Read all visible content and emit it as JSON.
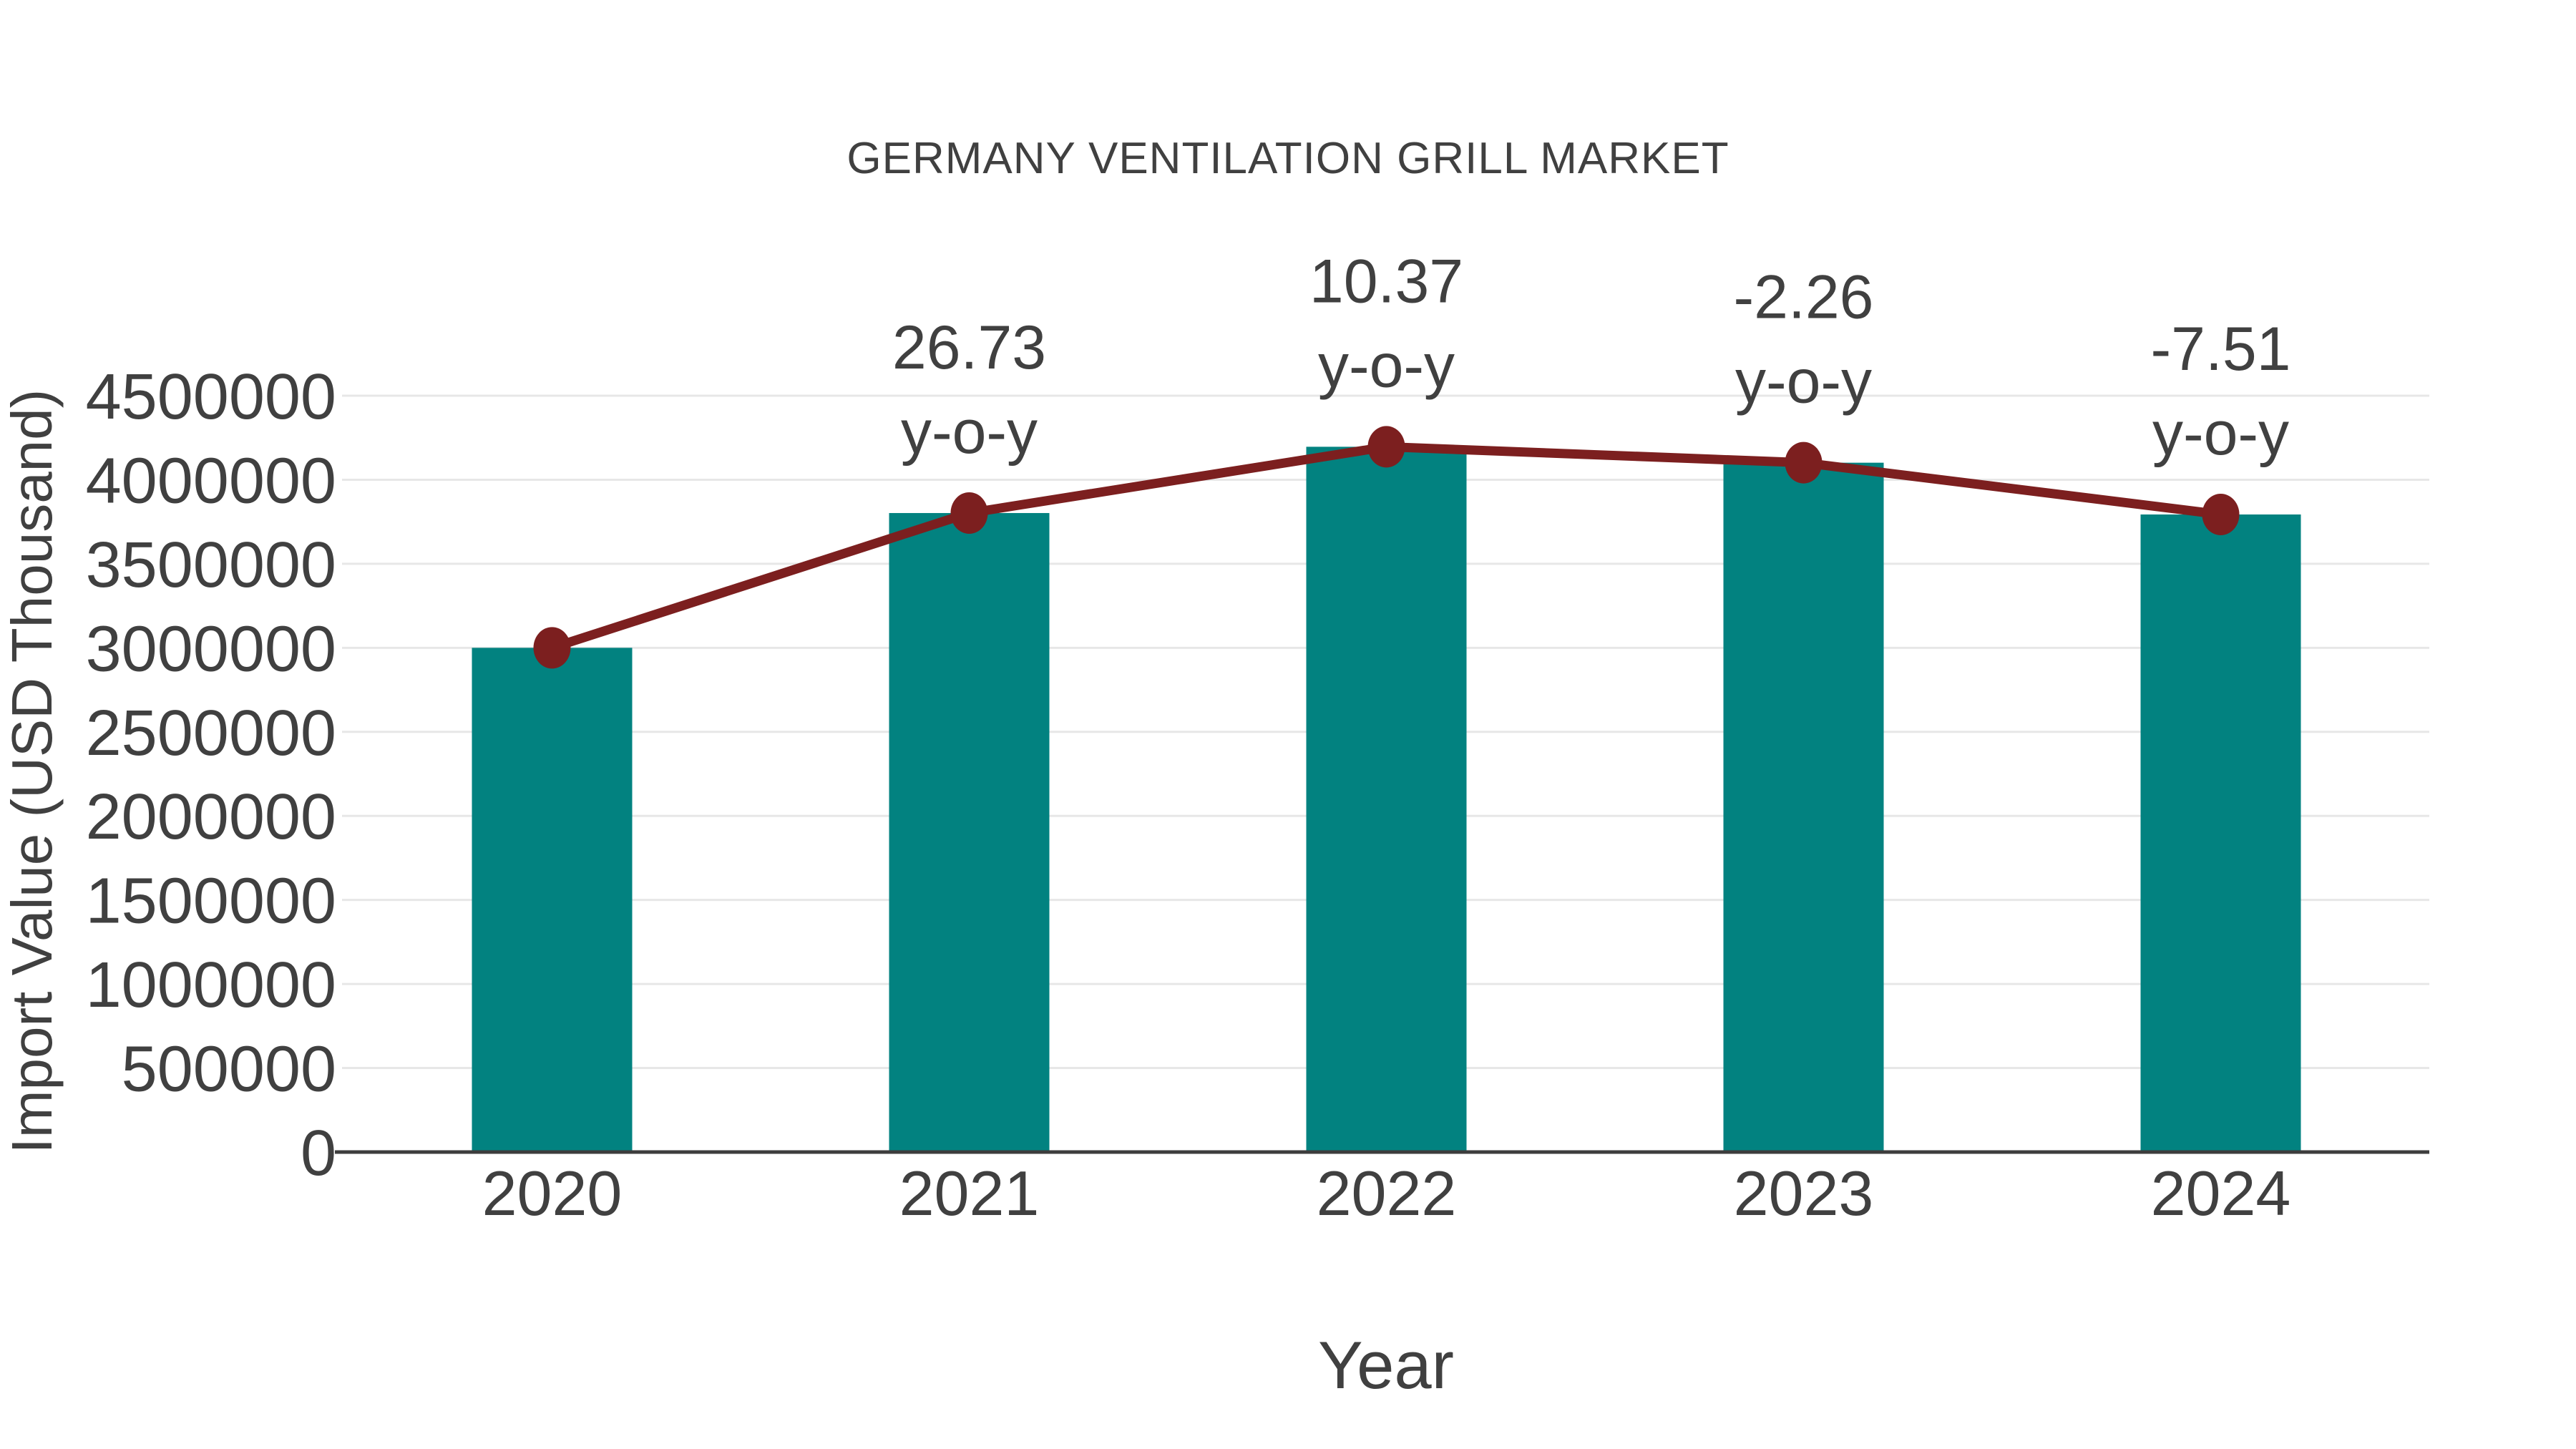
{
  "chart_data": {
    "type": "bar",
    "title": "GERMANY VENTILATION GRILL MARKET",
    "xlabel": "Year",
    "ylabel": "Import Value (USD Thousand)",
    "categories": [
      "2020",
      "2021",
      "2022",
      "2023",
      "2024"
    ],
    "series": [
      {
        "name": "bars",
        "type": "bar",
        "color": "#028280",
        "values": [
          3000000,
          3801900,
          4196157,
          4101324,
          3793315
        ]
      },
      {
        "name": "line",
        "type": "line",
        "color": "#7c1f1f",
        "values": [
          3000000,
          3801900,
          4196157,
          4101324,
          3793315
        ]
      }
    ],
    "annotations": [
      {
        "category": "2021",
        "line1": "26.73",
        "line2": "y-o-y"
      },
      {
        "category": "2022",
        "line1": "10.37",
        "line2": "y-o-y"
      },
      {
        "category": "2023",
        "line1": "-2.26",
        "line2": "y-o-y"
      },
      {
        "category": "2024",
        "line1": "-7.51",
        "line2": "y-o-y"
      }
    ],
    "ylim": [
      0,
      4500000
    ],
    "yticks": [
      0,
      500000,
      1000000,
      1500000,
      2000000,
      2500000,
      3000000,
      3500000,
      4000000,
      4500000
    ],
    "grid": true,
    "legend": false,
    "colors": {
      "text": "#404040",
      "grid": "#e7e7e7",
      "axis": "#3d3d3d"
    }
  }
}
